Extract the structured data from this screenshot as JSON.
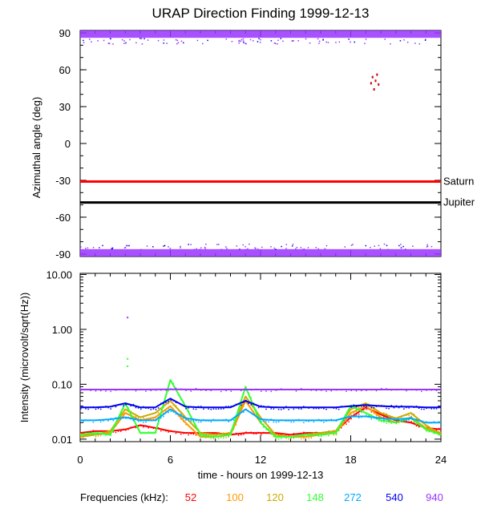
{
  "chart_data": [
    {
      "type": "scatter",
      "title": "URAP Direction Finding  1999-12-13",
      "xlabel": "",
      "ylabel": "Azimuthal angle (deg)",
      "xlim": [
        0,
        24
      ],
      "ylim": [
        -92,
        92
      ],
      "yticks": [
        "90",
        "60",
        "30",
        "0",
        "-30",
        "-60",
        "-90"
      ],
      "reference_lines": [
        {
          "label": "Saturn",
          "y": -31,
          "color": "#ff0000"
        },
        {
          "label": "Jupiter",
          "y": -48,
          "color": "#000000"
        }
      ],
      "bands": [
        {
          "name": "940",
          "y_range": [
            86,
            92
          ],
          "color": "#9933ff"
        },
        {
          "name": "940",
          "y_range": [
            -92,
            -86
          ],
          "color": "#9933ff"
        }
      ],
      "clusters": [
        {
          "x": [
            19.3,
            19.4,
            19.5,
            19.6,
            19.7,
            19.8
          ],
          "y": [
            50,
            55,
            45,
            52,
            57,
            49
          ],
          "color": "#cc0000"
        }
      ]
    },
    {
      "type": "line",
      "xlabel": "time - hours on 1999-12-13",
      "ylabel": "Intensity (microvolt/sqrt(Hz))",
      "xlim": [
        0,
        24
      ],
      "ylim": [
        0.009,
        10.5
      ],
      "yscale": "log",
      "xticks": [
        "0",
        "6",
        "12",
        "18",
        "24"
      ],
      "yticks": [
        "10.00",
        "1.00",
        "0.10",
        "0.01"
      ],
      "series": [
        {
          "name": "52",
          "color": "#ff0000",
          "x": [
            0,
            1,
            2,
            3,
            4,
            5,
            6,
            7,
            8,
            9,
            10,
            11,
            12,
            13,
            14,
            15,
            16,
            17,
            18,
            19,
            20,
            21,
            22,
            23,
            24
          ],
          "y": [
            0.013,
            0.014,
            0.014,
            0.015,
            0.018,
            0.016,
            0.014,
            0.013,
            0.013,
            0.013,
            0.012,
            0.013,
            0.013,
            0.013,
            0.012,
            0.013,
            0.013,
            0.014,
            0.025,
            0.038,
            0.028,
            0.022,
            0.02,
            0.016,
            0.015
          ]
        },
        {
          "name": "100",
          "color": "#ff9900",
          "x": [
            0,
            1,
            2,
            3,
            4,
            5,
            6,
            7,
            8,
            9,
            10,
            11,
            12,
            13,
            14,
            15,
            16,
            17,
            18,
            19,
            20,
            21,
            22,
            23,
            24
          ],
          "y": [
            0.012,
            0.012,
            0.013,
            0.03,
            0.022,
            0.025,
            0.04,
            0.02,
            0.011,
            0.011,
            0.012,
            0.05,
            0.02,
            0.011,
            0.011,
            0.011,
            0.012,
            0.013,
            0.03,
            0.04,
            0.025,
            0.02,
            0.025,
            0.016,
            0.013
          ]
        },
        {
          "name": "120",
          "color": "#ccaa00",
          "x": [
            0,
            1,
            2,
            3,
            4,
            5,
            6,
            7,
            8,
            9,
            10,
            11,
            12,
            13,
            14,
            15,
            16,
            17,
            18,
            19,
            20,
            21,
            22,
            23,
            24
          ],
          "y": [
            0.011,
            0.012,
            0.014,
            0.035,
            0.025,
            0.03,
            0.05,
            0.025,
            0.013,
            0.012,
            0.013,
            0.06,
            0.025,
            0.012,
            0.011,
            0.012,
            0.013,
            0.014,
            0.035,
            0.045,
            0.03,
            0.024,
            0.03,
            0.018,
            0.012
          ]
        },
        {
          "name": "148",
          "color": "#33ff33",
          "x": [
            0,
            1,
            2,
            3,
            4,
            5,
            6,
            7,
            8,
            9,
            10,
            11,
            12,
            13,
            14,
            15,
            16,
            17,
            18,
            19,
            20,
            21,
            22,
            23,
            24
          ],
          "y": [
            0.012,
            0.013,
            0.012,
            0.045,
            0.013,
            0.013,
            0.12,
            0.04,
            0.012,
            0.011,
            0.012,
            0.09,
            0.02,
            0.011,
            0.011,
            0.012,
            0.012,
            0.013,
            0.04,
            0.03,
            0.022,
            0.02,
            0.024,
            0.015,
            0.012
          ]
        },
        {
          "name": "272",
          "color": "#00aaff",
          "x": [
            0,
            1,
            2,
            3,
            4,
            5,
            6,
            7,
            8,
            9,
            10,
            11,
            12,
            13,
            14,
            15,
            16,
            17,
            18,
            19,
            20,
            21,
            22,
            23,
            24
          ],
          "y": [
            0.022,
            0.022,
            0.023,
            0.025,
            0.022,
            0.022,
            0.035,
            0.024,
            0.022,
            0.022,
            0.022,
            0.035,
            0.023,
            0.022,
            0.022,
            0.022,
            0.022,
            0.022,
            0.026,
            0.026,
            0.024,
            0.023,
            0.024,
            0.02,
            0.02
          ]
        },
        {
          "name": "540",
          "color": "#0000ee",
          "x": [
            0,
            1,
            2,
            3,
            4,
            5,
            6,
            7,
            8,
            9,
            10,
            11,
            12,
            13,
            14,
            15,
            16,
            17,
            18,
            19,
            20,
            21,
            22,
            23,
            24
          ],
          "y": [
            0.038,
            0.038,
            0.039,
            0.045,
            0.038,
            0.038,
            0.055,
            0.039,
            0.038,
            0.038,
            0.038,
            0.05,
            0.039,
            0.038,
            0.038,
            0.038,
            0.038,
            0.038,
            0.04,
            0.042,
            0.04,
            0.039,
            0.039,
            0.038,
            0.038
          ]
        },
        {
          "name": "940",
          "color": "#9933ff",
          "x": [
            0,
            2,
            4,
            6,
            8,
            10,
            12,
            14,
            16,
            18,
            20,
            22,
            24
          ],
          "y": [
            0.08,
            0.08,
            0.08,
            0.081,
            0.08,
            0.08,
            0.08,
            0.08,
            0.08,
            0.08,
            0.08,
            0.08,
            0.08
          ]
        }
      ],
      "spikes": [
        {
          "x": 3.1,
          "y": [
            0.22,
            0.3,
            1.7
          ],
          "color": "#33ff33"
        }
      ],
      "legend": {
        "label": "Frequencies (kHz):",
        "placement": "bottom"
      }
    }
  ]
}
